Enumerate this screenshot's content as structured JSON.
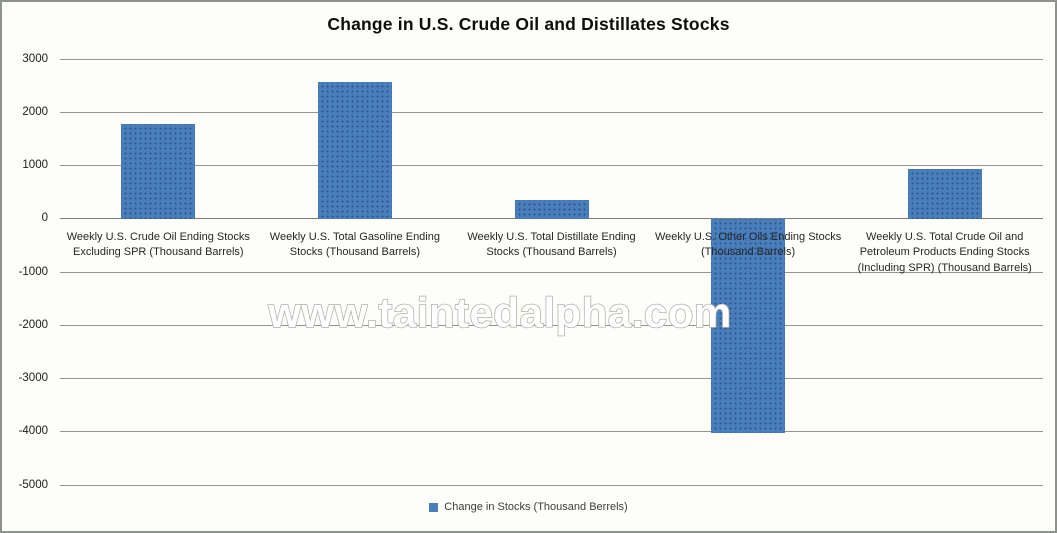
{
  "chart_data": {
    "type": "bar",
    "title": "Change in U.S. Crude Oil and Distillates Stocks",
    "categories": [
      "Weekly U.S. Crude Oil Ending Stocks Excluding SPR (Thousand Barrels)",
      "Weekly U.S. Total Gasoline Ending Stocks (Thousand Barrels)",
      "Weekly U.S. Total Distillate Ending Stocks (Thousand Barrels)",
      "Weekly U.S. Other Oils Ending Stocks (Thousand Barrels)",
      "Weekly U.S. Total Crude Oil and Petroleum Products Ending Stocks (Including SPR) (Thousand Barrels)"
    ],
    "values": [
      1780,
      2575,
      360,
      -4025,
      935
    ],
    "series_name": "Change in Stocks (Thousand Berrels)",
    "xlabel": "",
    "ylabel": "",
    "ylim": [
      -5000,
      3000
    ],
    "yticks": [
      3000,
      2000,
      1000,
      0,
      -1000,
      -2000,
      -3000,
      -4000,
      -5000
    ],
    "grid": "horizontal",
    "legend_position": "bottom",
    "bar_color": "#4a7ebb"
  },
  "legend": {
    "label": "Change in Stocks (Thousand Berrels)"
  },
  "watermark": "www.taintedalpha.com"
}
